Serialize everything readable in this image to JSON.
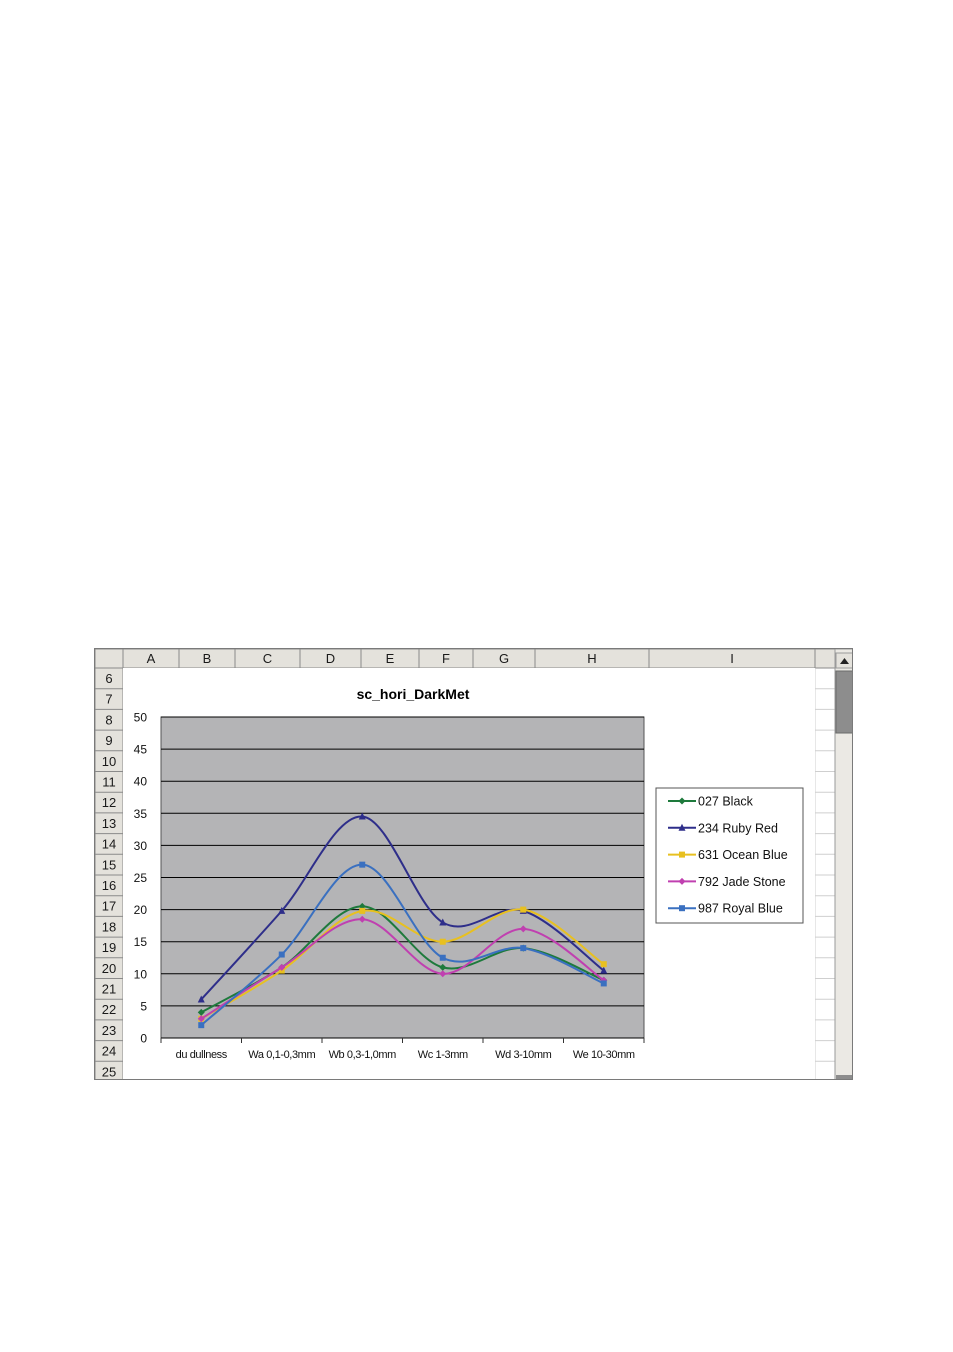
{
  "spreadsheet": {
    "column_headers": [
      "A",
      "B",
      "C",
      "D",
      "E",
      "F",
      "G",
      "H",
      "I"
    ],
    "row_headers": [
      "6",
      "7",
      "8",
      "9",
      "10",
      "11",
      "12",
      "13",
      "14",
      "15",
      "16",
      "17",
      "18",
      "19",
      "20",
      "21",
      "22",
      "23",
      "24",
      "25"
    ]
  },
  "colors": {
    "plot_background": "#b4b4b6",
    "header_background": "#e4e2dc",
    "gridline": "#000000"
  },
  "chart_data": {
    "type": "line",
    "title": "sc_hori_DarkMet",
    "xlabel": "",
    "ylabel": "",
    "ylim": [
      0,
      50
    ],
    "yticks": [
      0,
      5,
      10,
      15,
      20,
      25,
      30,
      35,
      40,
      45,
      50
    ],
    "categories": [
      "du dullness",
      "Wa 0,1-0,3mm",
      "Wb 0,3-1,0mm",
      "Wc 1-3mm",
      "Wd 3-10mm",
      "We 10-30mm"
    ],
    "grid": true,
    "smoothed": true,
    "legend_position": "right",
    "series": [
      {
        "name": "027 Black",
        "color": "#1e7a3c",
        "marker": "diamond",
        "values": [
          4,
          11,
          20.5,
          11,
          14,
          9
        ]
      },
      {
        "name": "234 Ruby Red",
        "color": "#2e2e8a",
        "marker": "triangle",
        "values": [
          6,
          19.8,
          34.5,
          18,
          19.8,
          10.5
        ]
      },
      {
        "name": "631 Ocean Blue",
        "color": "#e8c020",
        "marker": "square",
        "values": [
          3,
          10.5,
          19.8,
          15,
          20,
          11.5
        ]
      },
      {
        "name": "792 Jade Stone",
        "color": "#c040b0",
        "marker": "diamond",
        "values": [
          3,
          11,
          18.5,
          10,
          17,
          9
        ]
      },
      {
        "name": "987 Royal Blue",
        "color": "#3a70c0",
        "marker": "square",
        "values": [
          2,
          13,
          27,
          12.5,
          14,
          8.5
        ]
      }
    ]
  }
}
